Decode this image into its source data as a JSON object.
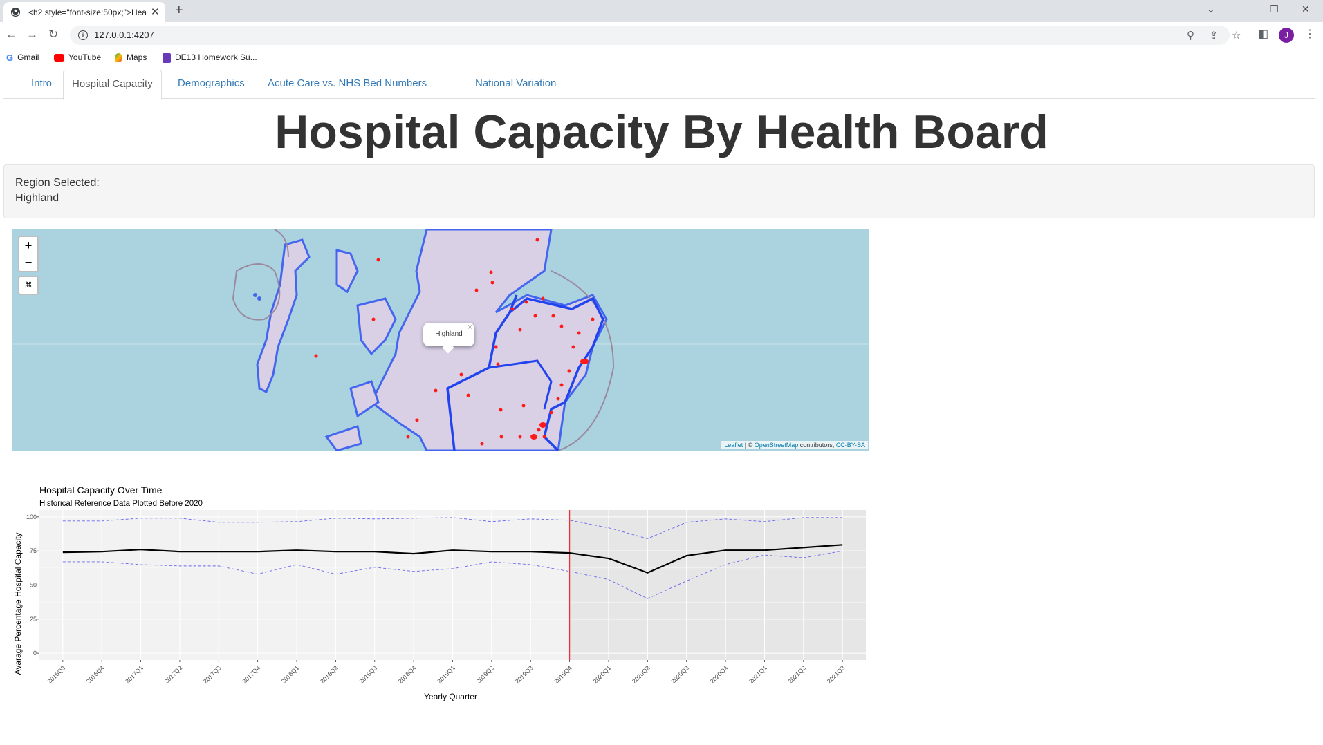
{
  "browser": {
    "tab_title": "<h2 style=\"font-size:50px;\">Hea",
    "url": "127.0.0.1:4207",
    "bookmarks": [
      {
        "label": "Gmail",
        "icon": "google-icon"
      },
      {
        "label": "YouTube",
        "icon": "youtube-icon"
      },
      {
        "label": "Maps",
        "icon": "maps-icon"
      },
      {
        "label": "DE13 Homework Su...",
        "icon": "sheets-icon"
      }
    ],
    "avatar_letter": "J"
  },
  "nav": {
    "tabs": [
      "Intro",
      "Hospital Capacity",
      "Demographics",
      "Acute Care vs. NHS Bed Numbers",
      "National Variation"
    ],
    "active_index": 1
  },
  "page": {
    "title": "Hospital Capacity By Health Board",
    "region_label": "Region Selected:",
    "region_value": "Highland"
  },
  "map": {
    "zoom_in": "+",
    "zoom_out": "−",
    "reset": "⌘",
    "popup": "Highland",
    "popup_close": "×",
    "attribution_leaflet": "Leaflet",
    "attribution_sep": " | © ",
    "attribution_osm": "OpenStreetMap",
    "attribution_mid": " contributors, ",
    "attribution_license": "CC-BY-SA",
    "colors": {
      "sea": "#aad3df",
      "land": "#d9d0e6",
      "board_border": "#3355ee",
      "points": "#ff1a1a"
    }
  },
  "chart_data": {
    "type": "line",
    "title": "Hospital Capacity Over Time",
    "subtitle": "Historical Reference Data Plotted Before 2020",
    "xlabel": "Yearly Quarter",
    "ylabel": "Avarage Percentage Hospital Capacity",
    "categories": [
      "2016Q3",
      "2016Q4",
      "2017Q1",
      "2017Q2",
      "2017Q3",
      "2017Q4",
      "2018Q1",
      "2018Q2",
      "2018Q3",
      "2018Q4",
      "2019Q1",
      "2019Q2",
      "2019Q3",
      "2019Q4",
      "2020Q1",
      "2020Q2",
      "2020Q3",
      "2020Q4",
      "2021Q1",
      "2021Q2",
      "2021Q3"
    ],
    "ylim": [
      -5,
      105
    ],
    "yticks": [
      0,
      25,
      50,
      75,
      100
    ],
    "ytick_labels": [
      "0",
      "25",
      "50",
      "75",
      "100"
    ],
    "vline_category": "2019Q4",
    "shaded_from": "2019Q4",
    "series": [
      {
        "values": [
          74,
          74.5,
          76,
          74.5,
          74.5,
          74.5,
          75.5,
          74.5,
          74.5,
          73,
          75.5,
          74.5,
          74.5,
          73.5,
          69.5,
          59,
          71.5,
          75.5,
          75.5,
          77.5,
          79.5
        ],
        "color": "#000000",
        "style": "solid"
      },
      {
        "values": [
          97,
          97,
          99,
          99,
          96,
          96,
          96.5,
          99,
          98.5,
          99,
          99.5,
          96.5,
          98.5,
          97.5,
          92,
          84,
          96,
          98.5,
          96.5,
          99.5,
          99.5
        ],
        "color": "#6666ee",
        "style": "dashed"
      },
      {
        "values": [
          67,
          67,
          65,
          64,
          64,
          58,
          65,
          58,
          63,
          60,
          62,
          67,
          65,
          60,
          54,
          40,
          53,
          65,
          72,
          70,
          75
        ],
        "color": "#6666ee",
        "style": "dashed"
      }
    ]
  }
}
